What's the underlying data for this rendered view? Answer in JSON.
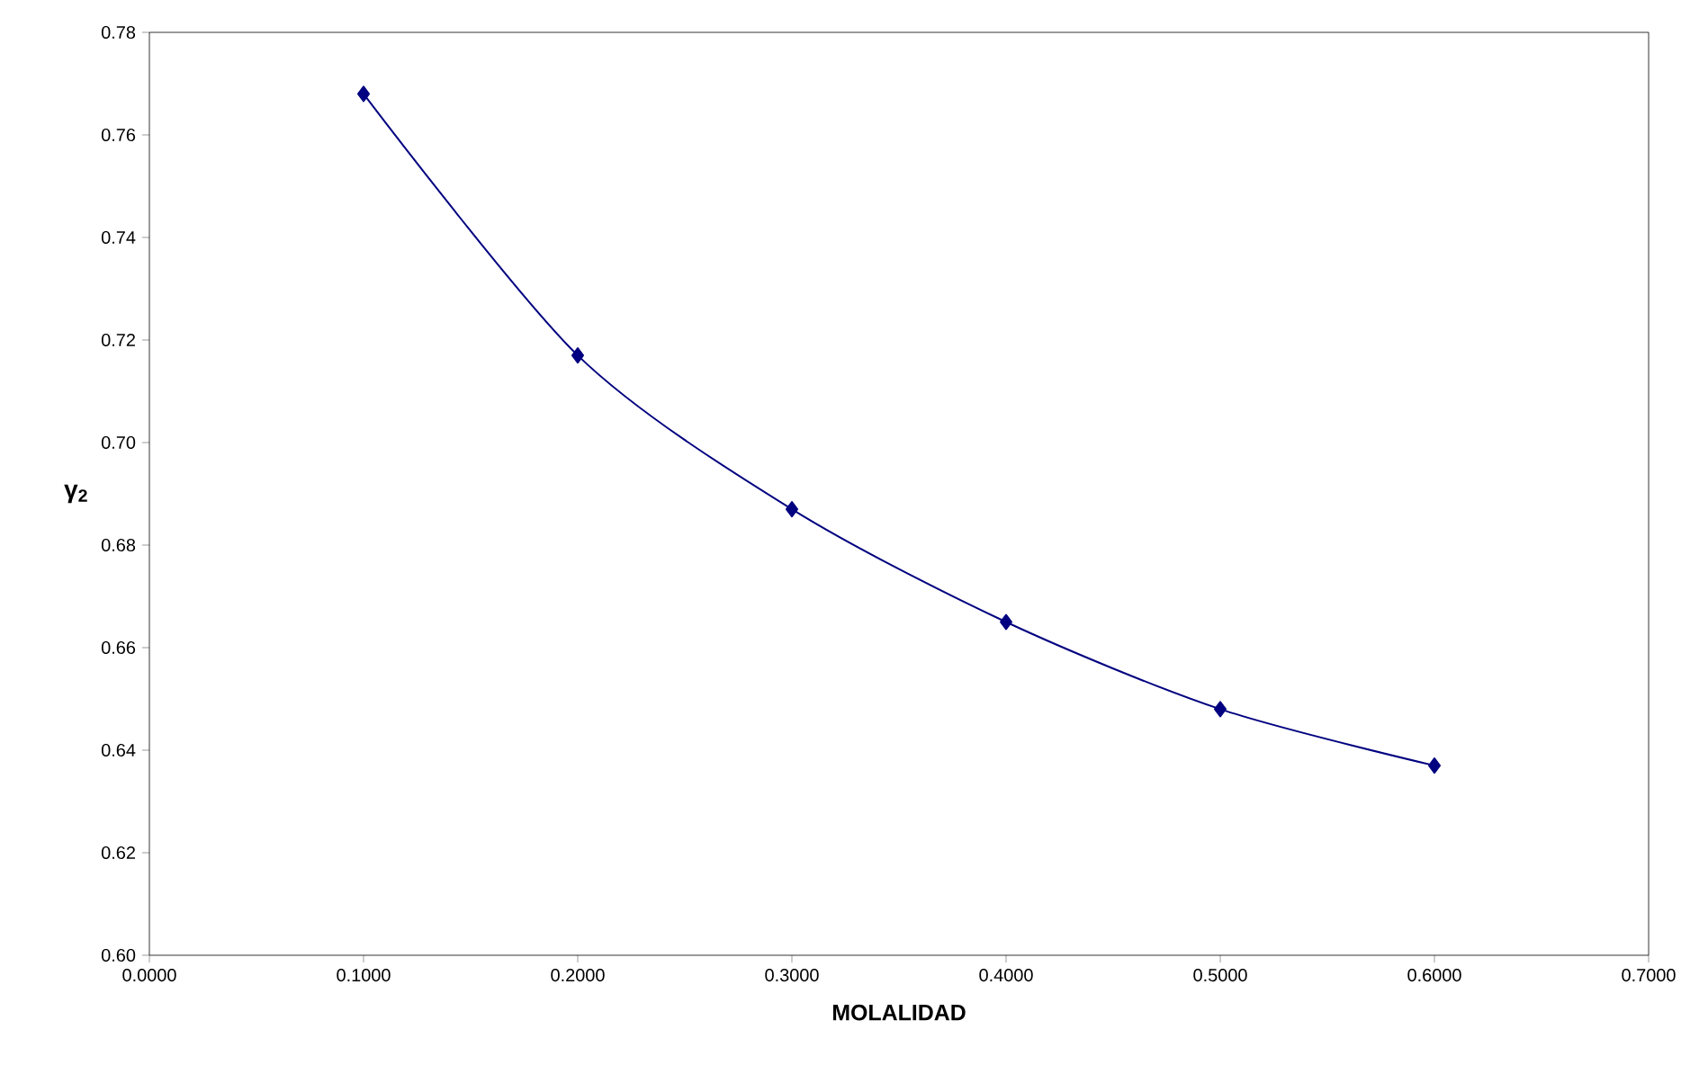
{
  "chart_data": {
    "type": "line",
    "xlabel": "MOLALIDAD",
    "ylabel": "γ$_{2}$",
    "x": [
      0.1,
      0.2,
      0.3,
      0.4,
      0.5,
      0.6
    ],
    "series": [
      {
        "color": "#000080",
        "values": [
          0.768,
          0.717,
          0.687,
          0.665,
          0.648,
          0.637
        ]
      }
    ],
    "xlim": [
      0,
      0.7
    ],
    "ylim": [
      0.6,
      0.78
    ],
    "xticks": [
      {
        "value": 0,
        "label": "0.0000"
      },
      {
        "value": 0.1,
        "label": "0.1000"
      },
      {
        "value": 0.2,
        "label": "0.2000"
      },
      {
        "value": 0.3,
        "label": "0.3000"
      },
      {
        "value": 0.4,
        "label": "0.4000"
      },
      {
        "value": 0.5,
        "label": "0.5000"
      },
      {
        "value": 0.6,
        "label": "0.6000"
      },
      {
        "value": 0.7,
        "label": "0.7000"
      }
    ],
    "yticks": [
      {
        "value": 0.6,
        "label": "0.60"
      },
      {
        "value": 0.62,
        "label": "0.62"
      },
      {
        "value": 0.64,
        "label": "0.64"
      },
      {
        "value": 0.66,
        "label": "0.66"
      },
      {
        "value": 0.68,
        "label": "0.68"
      },
      {
        "value": 0.7,
        "label": "0.70"
      },
      {
        "value": 0.72,
        "label": "0.72"
      },
      {
        "value": 0.74,
        "label": "0.74"
      },
      {
        "value": 0.76,
        "label": "0.76"
      },
      {
        "value": 0.78,
        "label": "0.78"
      }
    ],
    "marker": "diamond",
    "line_style": "solid"
  }
}
